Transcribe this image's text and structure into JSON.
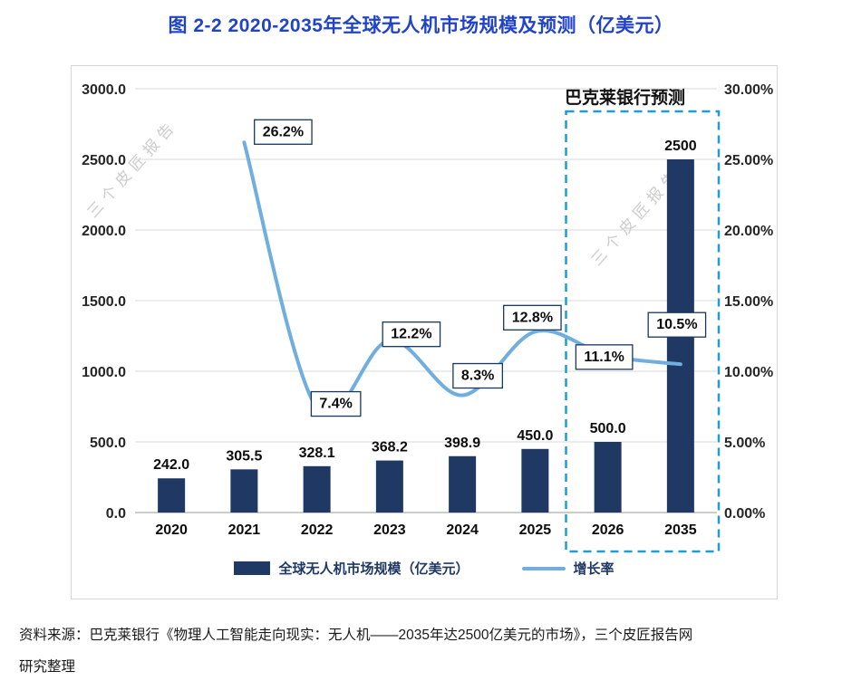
{
  "colors": {
    "title": "#2143C8",
    "bar": "#1F3864",
    "line": "#70AEE0",
    "forecast_box": "#1E9CD8",
    "watermark": "#cccccc",
    "legend_text": "#1F3864"
  },
  "title": "图 2-2 2020-2035年全球无人机市场规模及预测（亿美元）",
  "watermark": "三个皮匠报告",
  "annotation": "巴克莱银行预测",
  "legend": {
    "bar_label": "全球无人机市场规模（亿美元）",
    "line_label": "增长率"
  },
  "source": {
    "line1": "资料来源：巴克莱银行《物理人工智能走向现实：无人机——2035年达2500亿美元的市场》，三个皮匠报告网",
    "line2": "研究整理"
  },
  "chart_data": {
    "type": "bar+line",
    "title": "图 2-2 2020-2035年全球无人机市场规模及预测（亿美元）",
    "categories": [
      "2020",
      "2021",
      "2022",
      "2023",
      "2024",
      "2025",
      "2026",
      "2035"
    ],
    "series": [
      {
        "name": "全球无人机市场规模（亿美元）",
        "type": "bar",
        "axis": "left",
        "values": [
          242.0,
          305.5,
          328.1,
          368.2,
          398.9,
          450.0,
          500.0,
          2500
        ],
        "labels": [
          "242.0",
          "305.5",
          "328.1",
          "368.2",
          "398.9",
          "450.0",
          "500.0",
          "2500"
        ]
      },
      {
        "name": "增长率",
        "type": "line",
        "axis": "right",
        "values": [
          null,
          26.2,
          7.4,
          12.2,
          8.3,
          12.8,
          11.1,
          10.5
        ],
        "labels": [
          null,
          "26.2%",
          "7.4%",
          "12.2%",
          "8.3%",
          "12.8%",
          "11.1%",
          "10.5%"
        ]
      }
    ],
    "left_axis": {
      "min": 0,
      "max": 3000,
      "step": 500,
      "tick_labels": [
        "0.0",
        "500.0",
        "1000.0",
        "1500.0",
        "2000.0",
        "2500.0",
        "3000.0"
      ]
    },
    "right_axis": {
      "min": 0,
      "max": 30,
      "step": 5,
      "tick_labels": [
        "0.00%",
        "5.00%",
        "10.00%",
        "15.00%",
        "20.00%",
        "25.00%",
        "30.00%"
      ]
    },
    "forecast_annotation": "巴克莱银行预测",
    "forecast_categories": [
      "2026",
      "2035"
    ],
    "grid": true,
    "legend_position": "bottom"
  }
}
